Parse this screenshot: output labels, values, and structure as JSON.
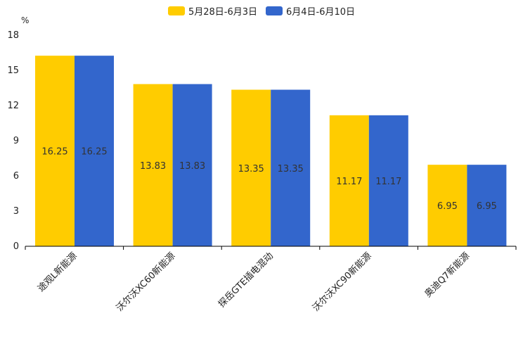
{
  "chart_data": {
    "type": "bar",
    "unit": "%",
    "categories": [
      "途观L新能源",
      "沃尔沃XC60新能源",
      "探岳GTE插电混动",
      "沃尔沃XC90新能源",
      "奥迪Q7新能源"
    ],
    "series": [
      {
        "name": "5月28日-6月3日",
        "color": "#ffcc00",
        "values": [
          16.25,
          13.83,
          13.35,
          11.17,
          6.95
        ]
      },
      {
        "name": "6月4日-6月10日",
        "color": "#3366cc",
        "values": [
          16.25,
          13.83,
          13.35,
          11.17,
          6.95
        ]
      }
    ],
    "yticks": [
      0,
      3,
      6,
      9,
      12,
      15,
      18
    ],
    "ylim": [
      0,
      18
    ],
    "legend_position": "top-center",
    "grid": false
  }
}
